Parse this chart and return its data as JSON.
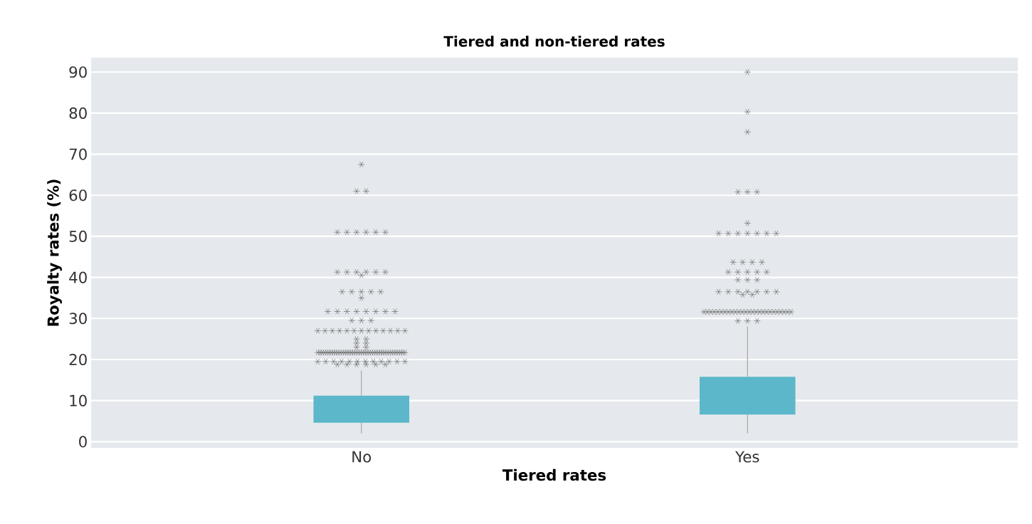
{
  "chart_data": {
    "type": "box",
    "title": "Tiered and non-tiered rates",
    "xlabel": "Tiered rates",
    "ylabel": "Royalty rates (%)",
    "categories": [
      "No",
      "Yes"
    ],
    "color": "#5bb7c9",
    "marker": "star",
    "grid": "y",
    "ylim": [
      -1.5,
      93.5
    ],
    "yticks": [
      0,
      10,
      20,
      30,
      40,
      50,
      60,
      70,
      80,
      90
    ],
    "boxes": [
      {
        "low": 2,
        "q1": 4.6,
        "median": 7,
        "q3": 11.2,
        "high": 17.3,
        "outliers": [
          67.5,
          61,
          61,
          51,
          51,
          51,
          51,
          51,
          51,
          41.3,
          41.3,
          41.3,
          41.3,
          41.3,
          41.3,
          40.5,
          36.5,
          36.5,
          36.5,
          36.5,
          36.5,
          35,
          31.7,
          31.7,
          31.7,
          31.7,
          31.7,
          31.7,
          31.7,
          31.7,
          29.5,
          29.5,
          29.5,
          27,
          27,
          27,
          27,
          27,
          27,
          27,
          27,
          27,
          27,
          27,
          27,
          27,
          25,
          25,
          24,
          24,
          23,
          23,
          21.7,
          21.7,
          21.7,
          21.7,
          21.7,
          21.7,
          21.7,
          21.7,
          21.7,
          21.7,
          21.7,
          21.7,
          21.7,
          21.7,
          21.7,
          21.7,
          21.7,
          21.7,
          21.7,
          21.7,
          21.7,
          21.7,
          21.7,
          21.7,
          21.7,
          21.7,
          21.7,
          21.7,
          21.7,
          21.7,
          21.7,
          21.7,
          21.7,
          21.7,
          21.7,
          21.7,
          21.7,
          21.7,
          21.7,
          21.7,
          19.5,
          19.5,
          19.5,
          19.5,
          19.5,
          19.5,
          19.5,
          19.5,
          19.5,
          19.5,
          19.5,
          19.5,
          18.8,
          18.8,
          18.8,
          18.8,
          18.8,
          18.8
        ]
      },
      {
        "low": 2,
        "q1": 6.6,
        "median": 10,
        "q3": 15.8,
        "high": 28,
        "outliers": [
          90,
          80.3,
          75.4,
          60.8,
          60.8,
          60.8,
          53.2,
          50.7,
          50.7,
          50.7,
          50.7,
          50.7,
          50.7,
          50.7,
          43.7,
          43.7,
          43.7,
          43.7,
          41.3,
          41.3,
          41.3,
          41.3,
          41.3,
          39.4,
          39.4,
          39.4,
          36.5,
          36.5,
          36.5,
          36.5,
          36.5,
          36.5,
          36.5,
          35.8,
          35.8,
          31.6,
          31.6,
          31.6,
          31.6,
          31.6,
          31.6,
          31.6,
          31.6,
          31.6,
          31.6,
          31.6,
          31.6,
          31.6,
          31.6,
          31.6,
          31.6,
          31.6,
          31.6,
          31.6,
          31.6,
          31.6,
          31.6,
          31.6,
          31.6,
          31.6,
          31.6,
          29.4,
          29.4,
          29.4
        ]
      }
    ]
  }
}
